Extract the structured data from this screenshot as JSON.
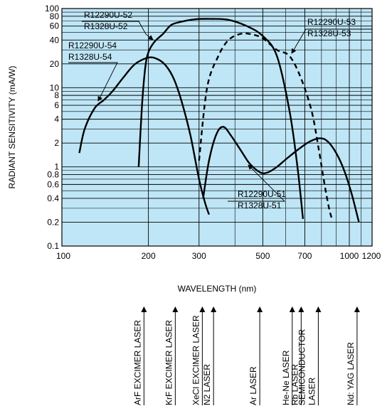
{
  "chart_data": {
    "type": "line",
    "xlabel": "WAVELENGTH (nm)",
    "ylabel": "RADIANT SENSITIVITY (mA/W)",
    "xscale": "log",
    "yscale": "log",
    "xlim": [
      100,
      1200
    ],
    "ylim": [
      0.1,
      100
    ],
    "x_ticks": [
      "100",
      "200",
      "300",
      "500",
      "700",
      "1000",
      "1200"
    ],
    "x_tick_values": [
      100,
      200,
      300,
      500,
      700,
      1000,
      1200
    ],
    "y_ticks": [
      "0.1",
      "0.2",
      "0.4",
      "0.6",
      "0.8",
      "1",
      "2",
      "4",
      "6",
      "8",
      "10",
      "20",
      "40",
      "60",
      "80",
      "100"
    ],
    "y_tick_values": [
      0.1,
      0.2,
      0.4,
      0.6,
      0.8,
      1,
      2,
      4,
      6,
      8,
      10,
      20,
      40,
      60,
      80,
      100
    ],
    "grid": true,
    "plot_background": "#bfe6f6",
    "series": [
      {
        "name": "R12290U-54 / R1328U-54",
        "style": "solid",
        "x": [
          115,
          120,
          130,
          140,
          150,
          165,
          180,
          200,
          215,
          230,
          245,
          260,
          280,
          300,
          315,
          325
        ],
        "y": [
          1.5,
          3.0,
          5.5,
          7.0,
          9.0,
          14,
          20,
          24,
          23,
          19,
          13,
          7,
          2.5,
          0.7,
          0.35,
          0.25
        ]
      },
      {
        "name": "R12290U-52 / R1328U-52",
        "style": "solid",
        "x": [
          185,
          190,
          195,
          200,
          210,
          225,
          240,
          260,
          290,
          330,
          380,
          440,
          500,
          560,
          620,
          660,
          690
        ],
        "y": [
          1.0,
          6.0,
          18,
          28,
          38,
          48,
          62,
          68,
          73,
          74,
          72,
          60,
          45,
          25,
          5,
          1.0,
          0.22
        ]
      },
      {
        "name": "R12290U-53 / R1328U-53",
        "style": "dashed",
        "x": [
          300,
          320,
          350,
          380,
          420,
          460,
          500,
          560,
          620,
          680,
          740,
          780,
          820,
          850,
          870
        ],
        "y": [
          1.2,
          10,
          25,
          40,
          48,
          47,
          42,
          30,
          25,
          13,
          5,
          1.8,
          0.6,
          0.3,
          0.22
        ]
      },
      {
        "name": "R12290U-51 / R1328U-51",
        "style": "solid",
        "x": [
          310,
          325,
          345,
          365,
          390,
          420,
          450,
          490,
          520,
          560,
          610,
          670,
          730,
          790,
          840,
          900,
          960,
          1020,
          1080
        ],
        "y": [
          0.4,
          1.2,
          2.6,
          3.2,
          2.4,
          1.6,
          1.1,
          0.85,
          0.85,
          1.0,
          1.3,
          1.7,
          2.1,
          2.3,
          2.1,
          1.5,
          0.9,
          0.45,
          0.2
        ]
      }
    ],
    "annotations": [
      {
        "lines": [
          "R12290U-52",
          "R1328U-52"
        ],
        "target_series": 1
      },
      {
        "lines": [
          "R12290U-53",
          "R1328U-53"
        ],
        "target_series": 2
      },
      {
        "lines": [
          "R12290U-54",
          "R1328U-54"
        ],
        "target_series": 0
      },
      {
        "lines": [
          "R12290U-51",
          "R1328U-51"
        ],
        "target_series": 3
      }
    ],
    "lasers": [
      {
        "name": "ArF EXCIMER LASER",
        "wavelength": 193
      },
      {
        "name": "KrF EXCIMER LASER",
        "wavelength": 248
      },
      {
        "name": "XeCl EXCIMER LASER",
        "wavelength": 308
      },
      {
        "name": "N2 LASER",
        "wavelength": 337
      },
      {
        "name": "Ar LASER",
        "wavelength": 488
      },
      {
        "name": "He-Ne LASER",
        "wavelength": 633
      },
      {
        "name": "Rb LASER",
        "wavelength": 680
      },
      {
        "name": "SEMICONDUCTOR LASER",
        "wavelength": 780
      },
      {
        "name": "Nd: YAG LASER",
        "wavelength": 1064
      }
    ]
  }
}
